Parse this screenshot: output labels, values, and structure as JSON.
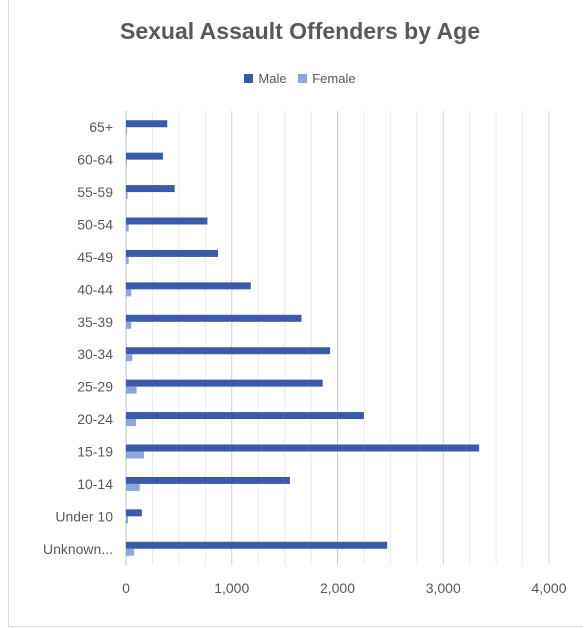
{
  "chart_data": {
    "type": "bar",
    "orientation": "horizontal",
    "title": "Sexual Assault Offenders by Age",
    "xlabel": "",
    "ylabel": "",
    "xlim": [
      0,
      4000
    ],
    "x_ticks": [
      "0",
      "1,000",
      "2,000",
      "3,000",
      "4,000"
    ],
    "grid": "vertical minor gridlines",
    "legend_position": "top",
    "categories": [
      "65+",
      "60-64",
      "55-59",
      "50-54",
      "45-49",
      "40-44",
      "35-39",
      "30-34",
      "25-29",
      "20-24",
      "15-19",
      "10-14",
      "Under 10",
      "Unknown..."
    ],
    "series": [
      {
        "name": "Male",
        "color": "#3a5ba9",
        "values": [
          390,
          350,
          460,
          770,
          870,
          1180,
          1660,
          1930,
          1860,
          2250,
          3340,
          1550,
          150,
          2470
        ]
      },
      {
        "name": "Female",
        "color": "#8fa6d9",
        "values": [
          10,
          8,
          15,
          25,
          25,
          50,
          50,
          60,
          100,
          95,
          170,
          130,
          20,
          75
        ]
      }
    ]
  }
}
